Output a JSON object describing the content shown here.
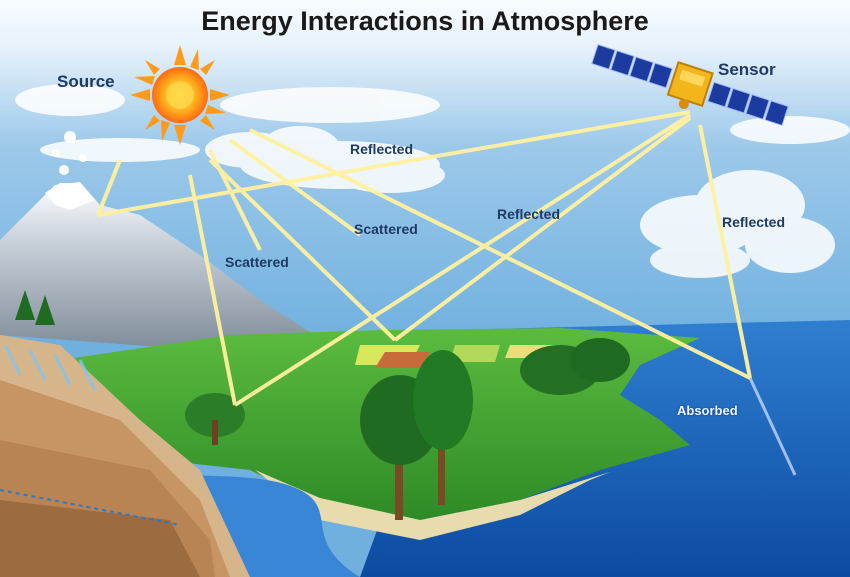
{
  "title": "Energy Interactions in Atmosphere",
  "labels": {
    "source": "Source",
    "sensor": "Sensor",
    "reflected_top": "Reflected",
    "reflected_middle": "Reflected",
    "reflected_right": "Reflected",
    "scattered_upper": "Scattered",
    "scattered_lower": "Scattered",
    "absorbed": "Absorbed"
  }
}
